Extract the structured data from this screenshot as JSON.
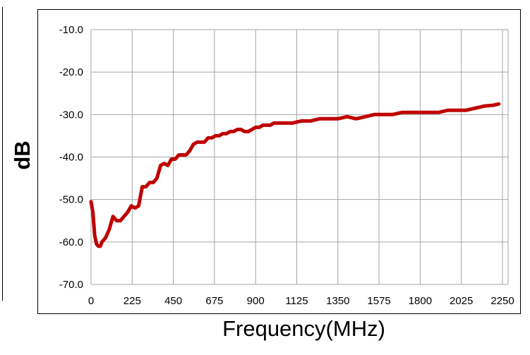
{
  "chart_data": {
    "type": "line",
    "title": "",
    "xlabel": "Frequency(MHz)",
    "ylabel": "dB",
    "xlim": [
      0,
      2250
    ],
    "ylim": [
      -70,
      -10
    ],
    "xticks": [
      "0",
      "225",
      "450",
      "675",
      "900",
      "1125",
      "1350",
      "1575",
      "1800",
      "2025",
      "2250"
    ],
    "yticks": [
      "-10.0",
      "-20.0",
      "-30.0",
      "-40.0",
      "-50.0",
      "-60.0",
      "-70.0"
    ],
    "grid": true,
    "legend": "none",
    "series": [
      {
        "color": "#c00000",
        "x": [
          0,
          10,
          20,
          30,
          40,
          50,
          60,
          80,
          100,
          120,
          140,
          160,
          180,
          200,
          220,
          240,
          260,
          280,
          300,
          320,
          340,
          360,
          380,
          400,
          420,
          440,
          460,
          480,
          500,
          520,
          540,
          560,
          580,
          600,
          620,
          640,
          660,
          680,
          700,
          720,
          740,
          760,
          780,
          800,
          820,
          840,
          860,
          880,
          900,
          920,
          940,
          960,
          980,
          1000,
          1050,
          1100,
          1150,
          1200,
          1250,
          1300,
          1350,
          1400,
          1450,
          1500,
          1550,
          1600,
          1650,
          1700,
          1750,
          1800,
          1850,
          1900,
          1950,
          2000,
          2050,
          2100,
          2150,
          2200,
          2230
        ],
        "y": [
          -50.5,
          -53,
          -58.5,
          -60.5,
          -61,
          -61,
          -60,
          -59,
          -57,
          -54,
          -55,
          -55,
          -54,
          -53,
          -51.5,
          -52,
          -51.5,
          -47,
          -47,
          -46,
          -46,
          -45,
          -42,
          -41.5,
          -42,
          -40.5,
          -40.5,
          -39.5,
          -39.5,
          -39.5,
          -38.5,
          -37,
          -36.5,
          -36.5,
          -36.5,
          -35.5,
          -35.5,
          -35,
          -35,
          -34.5,
          -34.5,
          -34,
          -34,
          -33.5,
          -33.5,
          -34,
          -34,
          -33.5,
          -33,
          -33,
          -32.5,
          -32.5,
          -32.5,
          -32,
          -32,
          -32,
          -31.5,
          -31.5,
          -31,
          -31,
          -31,
          -30.5,
          -31,
          -30.5,
          -30,
          -30,
          -30,
          -29.5,
          -29.5,
          -29.5,
          -29.5,
          -29.5,
          -29,
          -29,
          -29,
          -28.5,
          -28,
          -27.8,
          -27.5
        ]
      }
    ]
  }
}
